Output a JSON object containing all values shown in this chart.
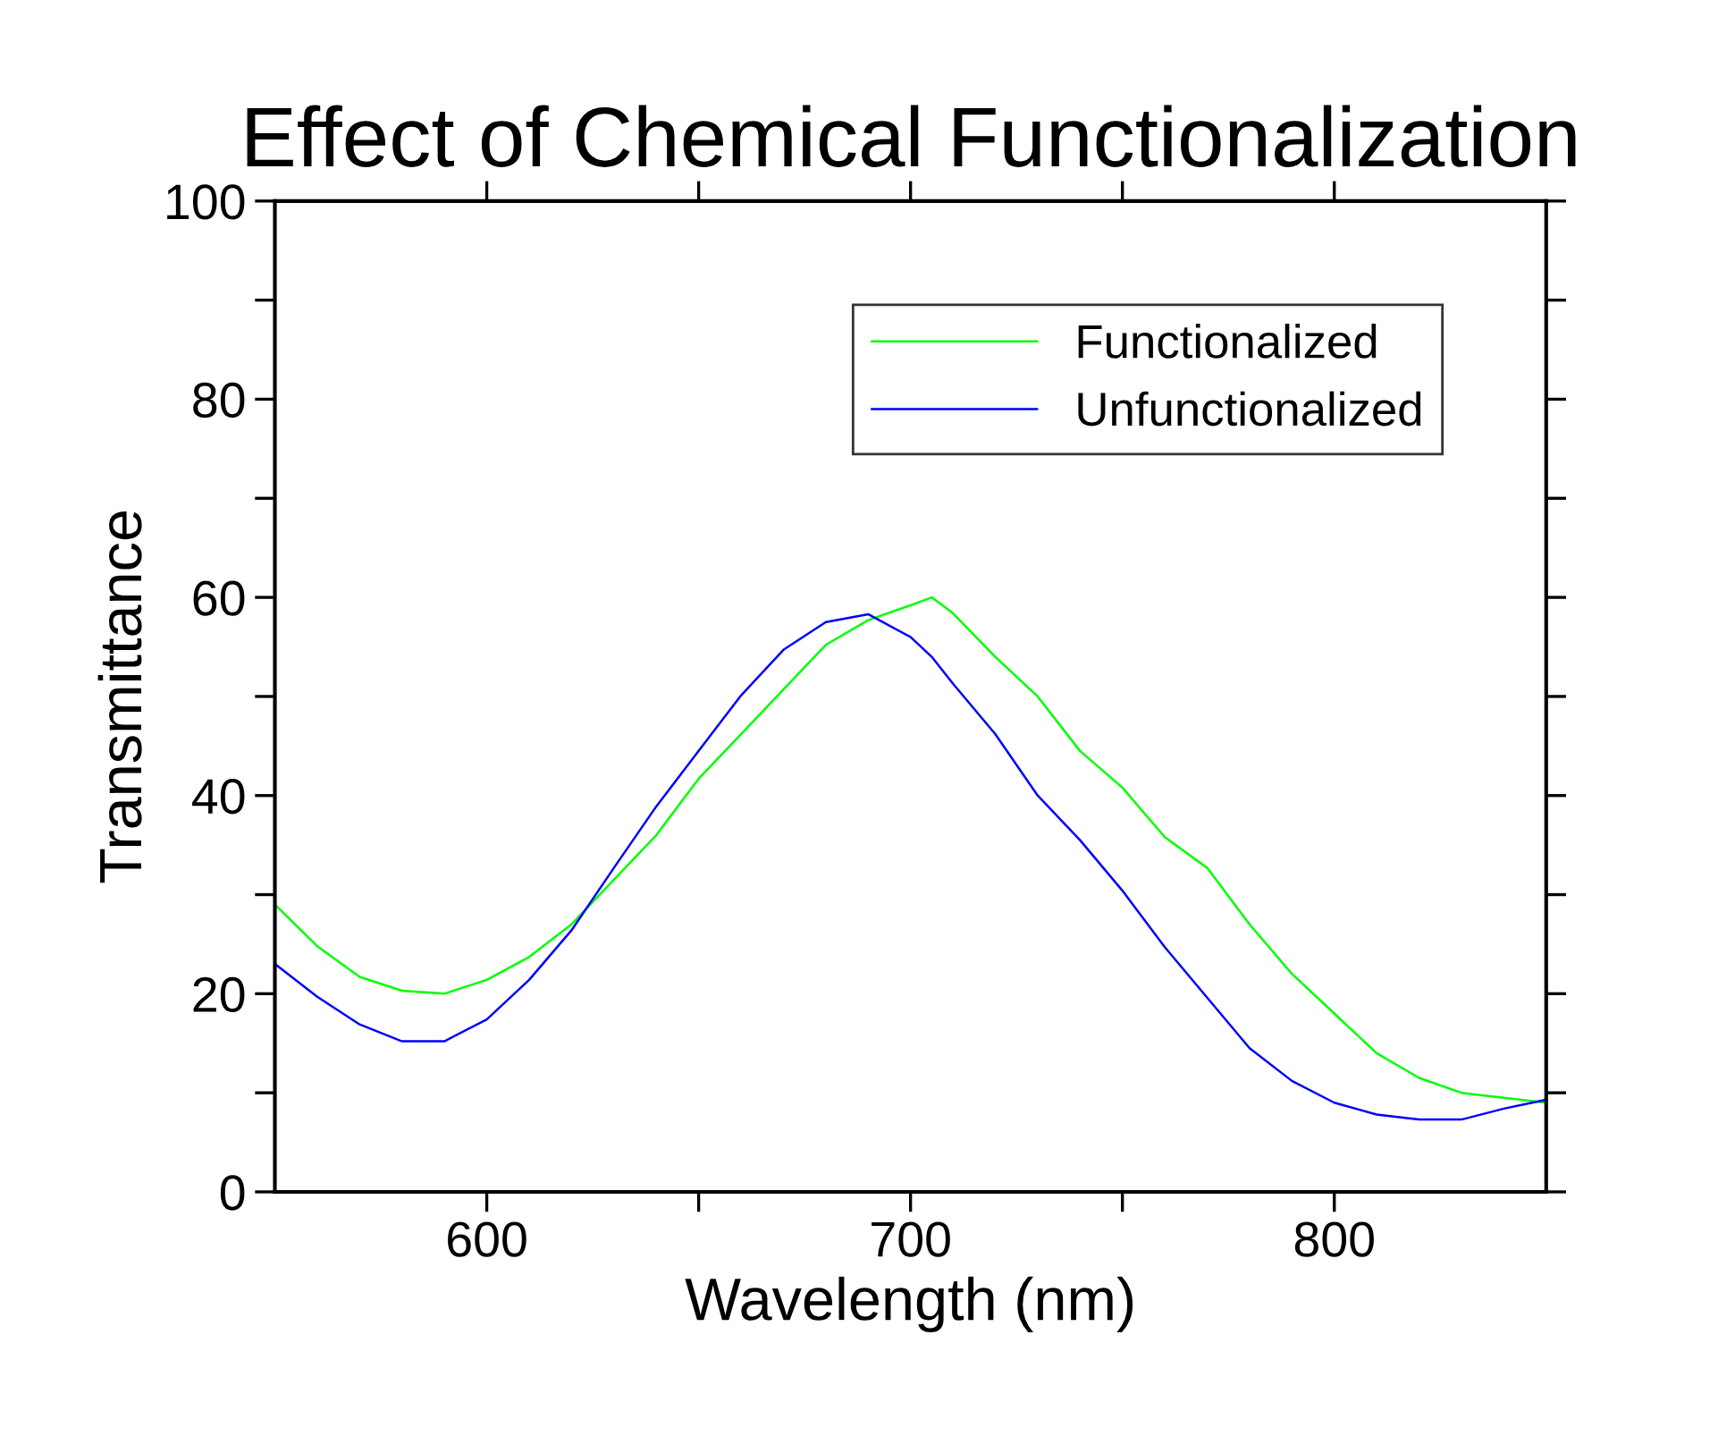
{
  "chart_data": {
    "type": "line",
    "title": "Effect of Chemical Functionalization",
    "xlabel": "Wavelength (nm)",
    "ylabel": "Transmittance",
    "x": [
      550,
      560,
      570,
      580,
      590,
      600,
      610,
      620,
      630,
      640,
      650,
      660,
      670,
      680,
      690,
      700,
      705,
      710,
      720,
      730,
      740,
      750,
      760,
      770,
      780,
      790,
      800,
      810,
      820,
      830,
      840,
      850
    ],
    "series": [
      {
        "name": "Functionalized",
        "color": "#00ff00",
        "values": [
          29,
          24.8,
          21.7,
          20.3,
          20,
          21.4,
          23.7,
          27,
          31.5,
          36,
          41.7,
          46.2,
          50.7,
          55.2,
          57.7,
          59.2,
          60,
          58.4,
          54,
          50,
          44.5,
          40.8,
          35.8,
          32.7,
          27,
          22,
          18,
          14,
          11.5,
          10,
          9.5,
          9
        ]
      },
      {
        "name": "Unfunctionalized",
        "color": "#0000ff",
        "values": [
          23,
          19.7,
          16.9,
          15.2,
          15.2,
          17.4,
          21.4,
          26.4,
          32.7,
          38.9,
          44.5,
          50.1,
          54.7,
          57.5,
          58.3,
          56,
          54,
          51.3,
          46.2,
          40,
          35.5,
          30.4,
          24.7,
          19.6,
          14.5,
          11.2,
          9,
          7.8,
          7.3,
          7.3,
          8.4,
          9.3
        ]
      }
    ],
    "xlim": [
      550,
      850
    ],
    "xticks": [
      600,
      {
        "value": 650,
        "label": null
      },
      700,
      {
        "value": 750,
        "label": null
      },
      800
    ],
    "ylim": [
      0,
      100
    ],
    "yticks": [
      0,
      {
        "value": 10,
        "label": null
      },
      20,
      {
        "value": 30,
        "label": null
      },
      40,
      {
        "value": 50,
        "label": null
      },
      60,
      {
        "value": 70,
        "label": null
      },
      80,
      {
        "value": 90,
        "label": null
      },
      100
    ],
    "grid": false,
    "legend": "top right",
    "marker": "none",
    "line_style": "solid"
  }
}
